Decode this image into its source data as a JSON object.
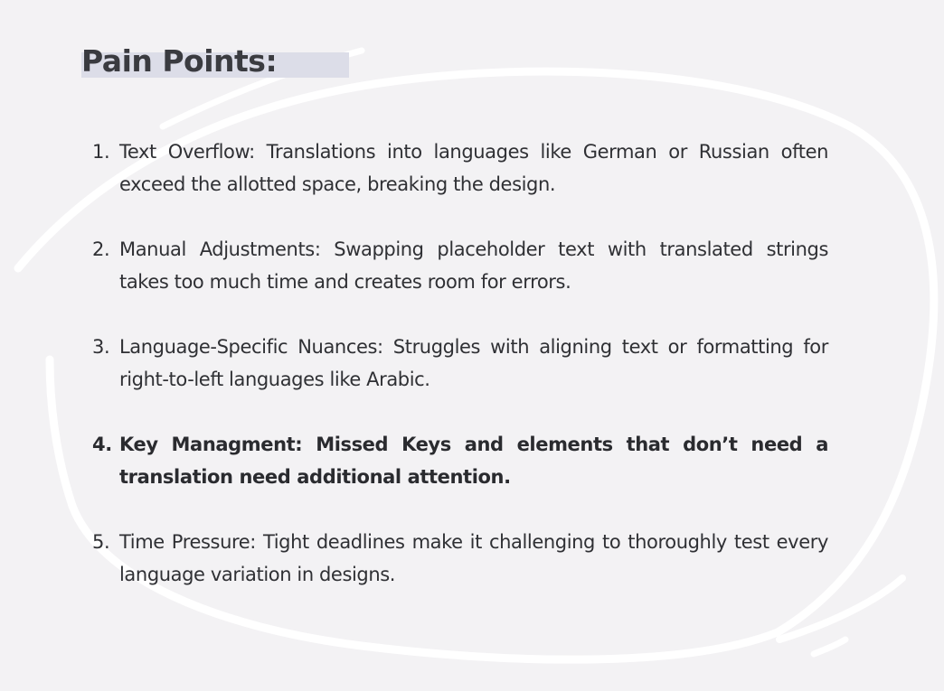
{
  "heading": "Pain Points:",
  "points": [
    {
      "number": "1.",
      "text": "Text Overflow: Translations into languages like German or Russian often exceed the allotted space, breaking the design."
    },
    {
      "number": "2.",
      "text": "Manual Adjustments: Swapping placeholder text with translated strings takes too much time and creates room for errors."
    },
    {
      "number": "3.",
      "text": "Language-Specific Nuances: Struggles with aligning text or formatting for right-to-left languages like Arabic."
    },
    {
      "number": "4.",
      "text": "Key Managment: Missed Keys and elements that don’t need a translation need additional attention."
    },
    {
      "number": "5.",
      "text": "Time Pressure: Tight deadlines make it challenging to thoroughly test every language variation in designs."
    }
  ],
  "colors": {
    "background": "#f3f2f4",
    "highlight": "#dcdde8",
    "text": "#2f3034",
    "swirl": "#ffffff"
  }
}
